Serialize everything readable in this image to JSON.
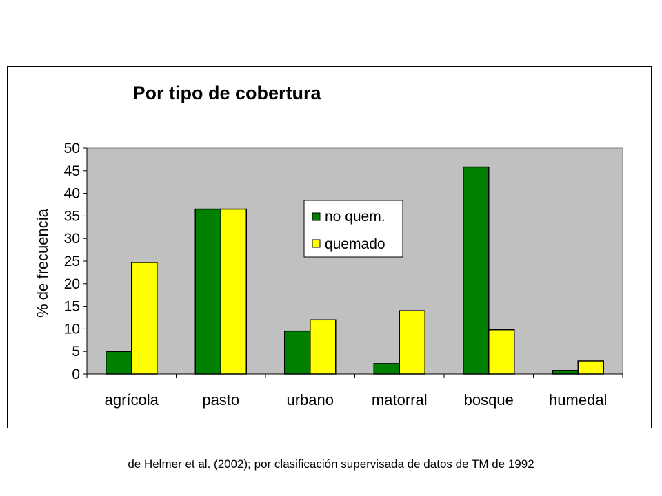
{
  "chart_data": {
    "type": "bar",
    "title": "Por tipo de cobertura",
    "xlabel": "",
    "ylabel": "% de frecuencia",
    "ylim": [
      0,
      50
    ],
    "yticks": [
      0,
      5,
      10,
      15,
      20,
      25,
      30,
      35,
      40,
      45,
      50
    ],
    "categories": [
      "agrícola",
      "pasto",
      "urbano",
      "matorral",
      "bosque",
      "humedal"
    ],
    "series": [
      {
        "name": "no quem.",
        "color": "#008000",
        "values": [
          5,
          36.5,
          9.5,
          2.3,
          45.8,
          0.8
        ]
      },
      {
        "name": "quemado",
        "color": "#ffff00",
        "values": [
          24.7,
          36.5,
          12,
          14,
          9.8,
          2.9
        ]
      }
    ],
    "plot_background": "#c0c0c0",
    "grid": false,
    "legend": "inside-center"
  },
  "caption": "de Helmer et al. (2002); por clasificación supervisada de datos de TM de 1992"
}
